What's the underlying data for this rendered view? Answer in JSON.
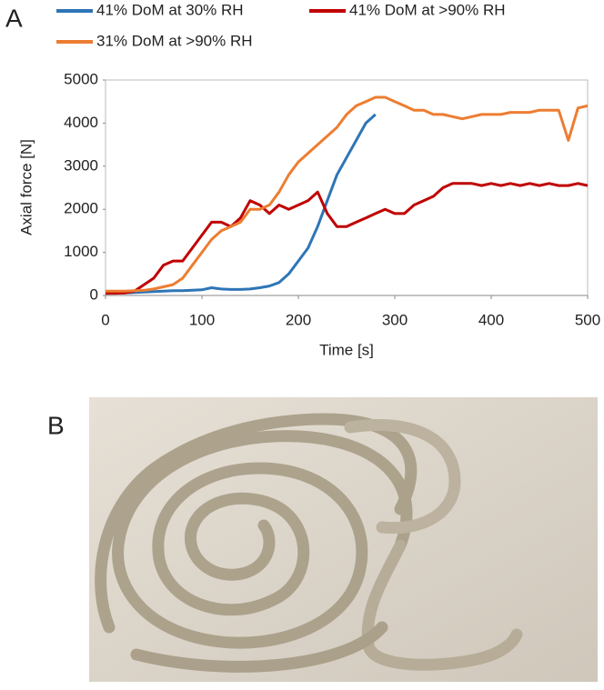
{
  "panel_labels": [
    "A",
    "B"
  ],
  "chart_data": {
    "type": "line",
    "x_label": "Time [s]",
    "y_label": "Axial force [N]",
    "x": [
      0,
      10,
      20,
      30,
      40,
      50,
      60,
      70,
      80,
      90,
      100,
      110,
      120,
      130,
      140,
      150,
      160,
      170,
      180,
      190,
      200,
      210,
      220,
      230,
      240,
      250,
      260,
      270,
      280,
      290,
      300,
      310,
      320,
      330,
      340,
      350,
      360,
      370,
      380,
      390,
      400,
      410,
      420,
      430,
      440,
      450,
      460,
      470,
      480,
      490,
      500
    ],
    "xlim": [
      0,
      500
    ],
    "xticks": [
      0,
      100,
      200,
      300,
      400,
      500
    ],
    "ylim": [
      0,
      5000
    ],
    "yticks": [
      0,
      1000,
      2000,
      3000,
      4000,
      5000
    ],
    "grid": false,
    "series": [
      {
        "name": "41% DoM at 30% RH",
        "color": "#2e75b6",
        "values": [
          50,
          60,
          60,
          70,
          80,
          90,
          100,
          110,
          110,
          120,
          130,
          180,
          150,
          140,
          140,
          150,
          180,
          220,
          300,
          500,
          800,
          1100,
          1600,
          2200,
          2800,
          3200,
          3600,
          4000,
          4200,
          null,
          null,
          null,
          null,
          null,
          null,
          null,
          null,
          null,
          null,
          null,
          null,
          null,
          null,
          null,
          null,
          null,
          null,
          null,
          null,
          null,
          null
        ]
      },
      {
        "name": "41% DoM at >90% RH",
        "color": "#c00000",
        "values": [
          50,
          50,
          60,
          100,
          250,
          400,
          700,
          800,
          800,
          1100,
          1400,
          1700,
          1700,
          1600,
          1800,
          2200,
          2100,
          1900,
          2100,
          2000,
          2100,
          2200,
          2400,
          1900,
          1600,
          1600,
          1700,
          1800,
          1900,
          2000,
          1900,
          1900,
          2100,
          2200,
          2300,
          2500,
          2600,
          2600,
          2600,
          2550,
          2600,
          2550,
          2600,
          2550,
          2600,
          2550,
          2600,
          2550,
          2550,
          2600,
          2550
        ]
      },
      {
        "name": "31% DoM at >90% RH",
        "color": "#ed7d31",
        "values": [
          100,
          100,
          100,
          110,
          120,
          150,
          200,
          250,
          400,
          700,
          1000,
          1300,
          1500,
          1600,
          1700,
          2000,
          2000,
          2100,
          2400,
          2800,
          3100,
          3300,
          3500,
          3700,
          3900,
          4200,
          4400,
          4500,
          4600,
          4600,
          4500,
          4400,
          4300,
          4300,
          4200,
          4200,
          4150,
          4100,
          4150,
          4200,
          4200,
          4200,
          4250,
          4250,
          4250,
          4300,
          4300,
          4300,
          3600,
          4350,
          4400
        ]
      }
    ]
  }
}
